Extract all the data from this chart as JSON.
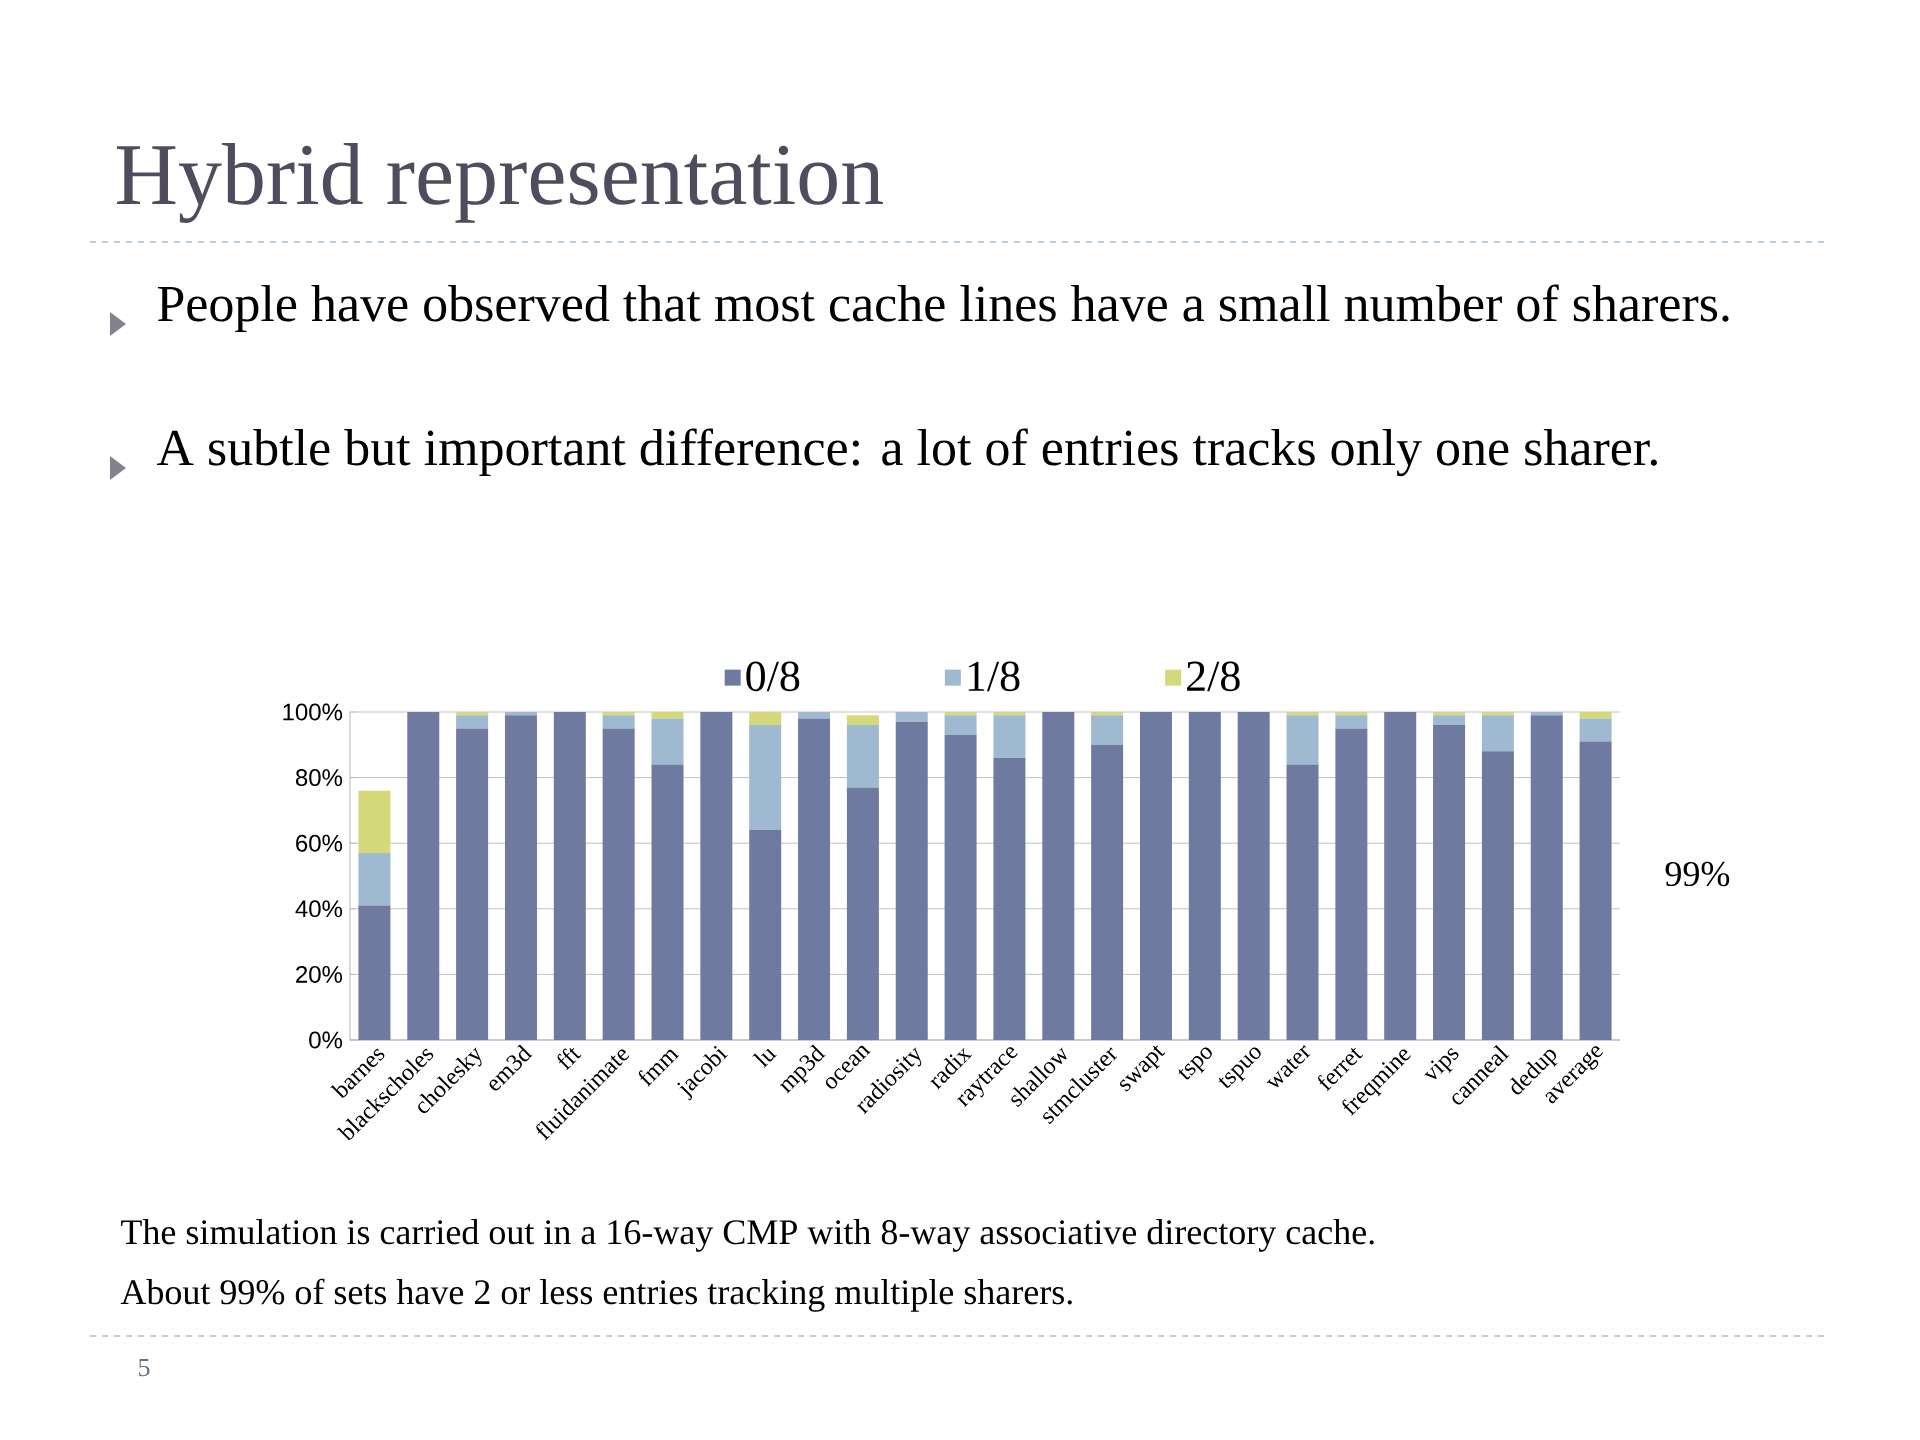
{
  "chart_data": {
    "type": "bar",
    "title": "Hybrid representation",
    "categories": [
      "barnes",
      "blackscholes",
      "cholesky",
      "em3d",
      "fft",
      "fluidanimate",
      "fmm",
      "jacobi",
      "lu",
      "mp3d",
      "ocean",
      "radiosity",
      "radix",
      "raytrace",
      "shallow",
      "stmcluster",
      "swapt",
      "tspo",
      "tspuo",
      "water",
      "ferret",
      "freqmine",
      "vips",
      "canneal",
      "dedup",
      "average"
    ],
    "series": [
      {
        "name": "0/8",
        "color": "#6e7aa0",
        "values": [
          41,
          100,
          95,
          99,
          100,
          95,
          84,
          100,
          64,
          98,
          77,
          97,
          93,
          86,
          100,
          90,
          100,
          100,
          100,
          84,
          95,
          100,
          96,
          88,
          99,
          91
        ]
      },
      {
        "name": "1/8",
        "color": "#9fb9d0",
        "values": [
          16,
          0,
          4,
          1,
          0,
          4,
          14,
          0,
          32,
          2,
          19,
          3,
          6,
          13,
          0,
          9,
          0,
          0,
          0,
          15,
          4,
          0,
          3,
          11,
          1,
          7
        ]
      },
      {
        "name": "2/8",
        "color": "#d6d97a",
        "values": [
          19,
          0,
          1,
          0,
          0,
          1,
          2,
          0,
          4,
          0,
          3,
          0,
          1,
          1,
          0,
          1,
          0,
          0,
          0,
          1,
          1,
          0,
          1,
          1,
          0,
          2
        ]
      }
    ],
    "stacked": true,
    "ylim": [
      0,
      100
    ],
    "yticks": [
      {
        "value": 0,
        "label": "0%"
      },
      {
        "value": 20,
        "label": "20%"
      },
      {
        "value": 40,
        "label": "40%"
      },
      {
        "value": 60,
        "label": "60%"
      },
      {
        "value": 80,
        "label": "80%"
      },
      {
        "value": 100,
        "label": "100%"
      }
    ],
    "grid": "y",
    "legend": "top",
    "annotations": [
      "People have observed that most cache lines have a small number of sharers.",
      "A subtle but important difference: a lot of entries tracks only one sharer.",
      "99%",
      "The simulation is carried out in a 16-way CMP with 8-way associative directory cache.",
      "About 99% of sets have 2 or less entries tracking multiple sharers.",
      "5"
    ]
  }
}
